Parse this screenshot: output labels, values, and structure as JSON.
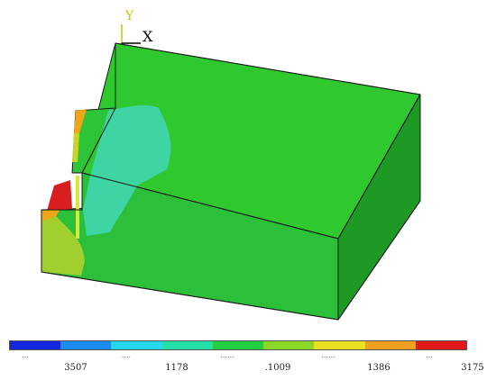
{
  "axis_triad": {
    "y_label": "Y",
    "x_label": "X",
    "y_color": "#c7c700",
    "x_color": "#000000",
    "z_color": "#1f5bd6"
  },
  "model": {
    "top_face_color": "#2fc92f",
    "front_face_color": "#2bbf3a",
    "side_face_color": "#1e9a24",
    "stress_zone_color": "#3fd4a4",
    "hot_spot_color": "#d81e1e",
    "warm_spot_color": "#f0a418",
    "yellow_zone_color": "#c8d42a"
  },
  "legend": {
    "colors": [
      "#1426e0",
      "#1a8cf0",
      "#24d8f0",
      "#24e0a8",
      "#20d040",
      "#8cd828",
      "#e8e020",
      "#f0a020",
      "#e01818"
    ],
    "labels_top": [
      "...",
      "....",
      "......",
      "......",
      "...",
      "...."
    ],
    "labels_bottom": [
      "3507",
      "1178",
      ".1009",
      "1386",
      "3175"
    ]
  }
}
